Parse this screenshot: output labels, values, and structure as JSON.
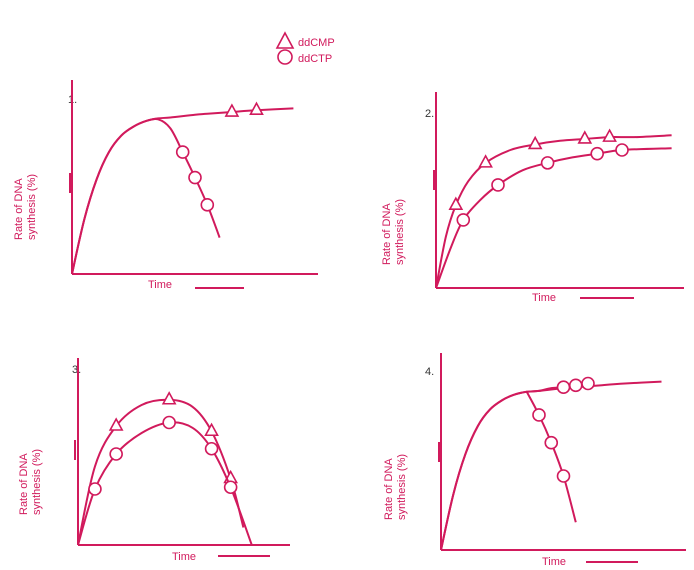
{
  "colors": {
    "accent": "#d11a5c",
    "text": "#333333"
  },
  "legend": {
    "entries": [
      {
        "label": "ddCMP",
        "marker": "triangle"
      },
      {
        "label": "ddCTP",
        "marker": "circle"
      }
    ]
  },
  "chart_data": [
    {
      "type": "line",
      "panel_label": "1.",
      "xlabel": "Time",
      "ylabel_line1": "Rate of DNA",
      "ylabel_line2": "synthesis (%)",
      "xlim": [
        0,
        10
      ],
      "ylim": [
        0,
        100
      ],
      "grid": false,
      "series": [
        {
          "name": "ddCMP",
          "marker": "triangle",
          "x": [
            0,
            0.5,
            1,
            1.5,
            2,
            2.5,
            3,
            3.5,
            4,
            5,
            5.5,
            6.5,
            7.5,
            9
          ],
          "y": [
            0,
            30,
            52,
            67,
            76,
            81,
            84,
            85.5,
            86,
            87.5,
            88,
            89,
            90,
            91
          ],
          "marker_indices": [
            11,
            12
          ]
        },
        {
          "name": "ddCTP",
          "marker": "circle",
          "x": [
            0,
            0.5,
            1,
            1.5,
            2,
            2.5,
            3,
            3.5,
            4,
            4.5,
            5,
            5.5,
            6
          ],
          "y": [
            0,
            30,
            52,
            67,
            76,
            81,
            84,
            85,
            80,
            67,
            53,
            38,
            20
          ],
          "marker_indices": [
            9,
            10,
            11
          ]
        }
      ]
    },
    {
      "type": "line",
      "panel_label": "2.",
      "xlabel": "Time",
      "ylabel_line1": "Rate of DNA",
      "ylabel_line2": "synthesis (%)",
      "xlim": [
        0,
        10
      ],
      "ylim": [
        0,
        100
      ],
      "grid": false,
      "series": [
        {
          "name": "ddCMP",
          "marker": "triangle",
          "x": [
            0,
            0.4,
            0.8,
            1.3,
            2,
            3,
            4,
            5,
            6,
            7,
            8,
            9.5
          ],
          "y": [
            0,
            28,
            45,
            58,
            68,
            75,
            78,
            80,
            81,
            82,
            82,
            83
          ],
          "marker_indices": [
            2,
            4,
            6,
            8,
            9
          ]
        },
        {
          "name": "ddCTP",
          "marker": "circle",
          "x": [
            0,
            0.6,
            1.1,
            1.8,
            2.5,
            3.5,
            4.5,
            5.5,
            6.5,
            7.5,
            9.5
          ],
          "y": [
            0,
            22,
            37,
            48,
            56,
            64,
            68,
            71,
            73,
            75,
            76
          ],
          "marker_indices": [
            2,
            4,
            6,
            8,
            9
          ]
        }
      ]
    },
    {
      "type": "line",
      "panel_label": "3.",
      "xlabel": "Time",
      "ylabel_line1": "Rate of DNA",
      "ylabel_line2": "synthesis (%)",
      "xlim": [
        0,
        10
      ],
      "ylim": [
        0,
        100
      ],
      "grid": false,
      "series": [
        {
          "name": "ddCMP",
          "marker": "triangle",
          "x": [
            0,
            0.8,
            1.8,
            3,
            4.3,
            5.4,
            6.3,
            7.2,
            7.8
          ],
          "y": [
            0,
            45,
            68,
            80,
            83,
            79,
            65,
            38,
            10
          ],
          "marker_indices": [
            2,
            4,
            6,
            7
          ]
        },
        {
          "name": "ddCTP",
          "marker": "circle",
          "x": [
            0,
            0.8,
            1.8,
            3,
            4.3,
            5.4,
            6.3,
            7.2,
            8.2
          ],
          "y": [
            0,
            32,
            52,
            64,
            70,
            67,
            55,
            33,
            0
          ],
          "marker_indices": [
            1,
            2,
            4,
            6,
            7
          ]
        }
      ]
    },
    {
      "type": "line",
      "panel_label": "4.",
      "xlabel": "Time",
      "ylabel_line1": "Rate of DNA",
      "ylabel_line2": "synthesis (%)",
      "xlim": [
        0,
        10
      ],
      "ylim": [
        0,
        100
      ],
      "grid": false,
      "series": [
        {
          "name": "ddCMP",
          "marker": "triangle",
          "x": [
            0,
            0.5,
            1,
            1.5,
            2,
            2.5,
            3,
            3.5,
            4,
            5,
            5.5,
            6.5,
            7.5,
            9
          ],
          "y": [
            0,
            30,
            52,
            67,
            76,
            81,
            84,
            85.5,
            86,
            87.5,
            88,
            89,
            90,
            91
          ],
          "marker_indices": []
        },
        {
          "name": "ddCTP",
          "marker": "circle",
          "x": [
            0,
            0.5,
            1,
            1.5,
            2,
            2.5,
            3,
            3.5,
            4,
            4.5,
            5,
            5.5,
            6
          ],
          "y": [
            0,
            30,
            52,
            67,
            76,
            81,
            84,
            85.5,
            86,
            87.5,
            88,
            89,
            90
          ],
          "marker_indices": [
            10,
            11,
            12
          ]
        },
        {
          "name": "",
          "marker": "circle",
          "x": [
            3.5,
            4,
            4.5,
            5,
            5.5
          ],
          "y": [
            85.5,
            73,
            58,
            40,
            15
          ],
          "marker_indices": [
            1,
            2,
            3
          ]
        }
      ]
    }
  ]
}
